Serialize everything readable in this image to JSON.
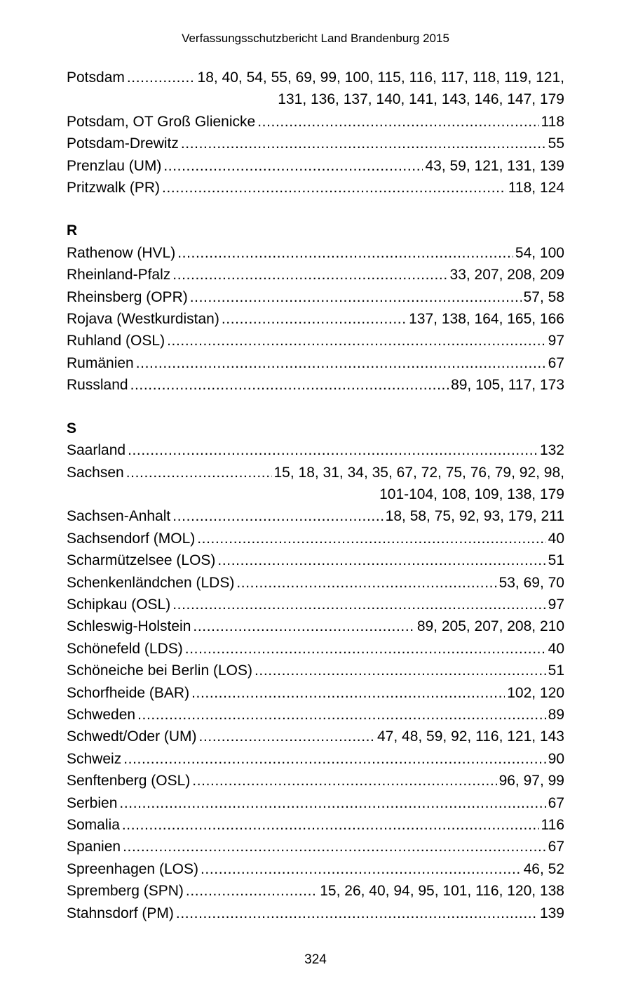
{
  "header": {
    "title": "Verfassungsschutzbericht Land Brandenburg 2015"
  },
  "footer": {
    "page_number": "324"
  },
  "index": {
    "sections": [
      {
        "heading": "",
        "entries": [
          {
            "label": "Potsdam",
            "pages": "18, 40, 54, 55, 69, 99, 100, 115, 116, 117, 118, 119, 121,",
            "pages2": "131, 136, 137, 140, 141, 143, 146, 147, 179"
          },
          {
            "label": "Potsdam, OT Groß Glienicke",
            "pages": "118"
          },
          {
            "label": "Potsdam-Drewitz",
            "pages": "55"
          },
          {
            "label": "Prenzlau (UM)",
            "pages": "43, 59, 121, 131, 139"
          },
          {
            "label": "Pritzwalk (PR)",
            "pages": "118, 124"
          }
        ]
      },
      {
        "heading": "R",
        "entries": [
          {
            "label": "Rathenow (HVL)",
            "pages": "54, 100"
          },
          {
            "label": "Rheinland-Pfalz",
            "pages": "33, 207, 208, 209"
          },
          {
            "label": "Rheinsberg (OPR)",
            "pages": "57, 58"
          },
          {
            "label": "Rojava (Westkurdistan)",
            "pages": "137, 138, 164, 165, 166"
          },
          {
            "label": "Ruhland (OSL)",
            "pages": "97"
          },
          {
            "label": "Rumänien",
            "pages": "67"
          },
          {
            "label": "Russland",
            "pages": "89, 105, 117, 173"
          }
        ]
      },
      {
        "heading": "S",
        "entries": [
          {
            "label": "Saarland",
            "pages": "132"
          },
          {
            "label": "Sachsen",
            "pages": "15, 18, 31, 34, 35, 67, 72, 75, 76, 79, 92, 98,",
            "pages2": "101-104, 108, 109, 138, 179"
          },
          {
            "label": "Sachsen-Anhalt",
            "pages": "18, 58, 75, 92, 93, 179, 211"
          },
          {
            "label": "Sachsendorf (MOL)",
            "pages": "40"
          },
          {
            "label": "Scharmützelsee (LOS)",
            "pages": "51"
          },
          {
            "label": "Schenkenländchen (LDS)",
            "pages": "53, 69, 70"
          },
          {
            "label": "Schipkau (OSL)",
            "pages": "97"
          },
          {
            "label": "Schleswig-Holstein",
            "pages": "89, 205, 207, 208, 210"
          },
          {
            "label": "Schönefeld (LDS)",
            "pages": "40"
          },
          {
            "label": "Schöneiche bei Berlin (LOS)",
            "pages": "51"
          },
          {
            "label": "Schorfheide (BAR)",
            "pages": "102, 120"
          },
          {
            "label": "Schweden",
            "pages": "89"
          },
          {
            "label": "Schwedt/Oder (UM)",
            "pages": "47, 48, 59, 92, 116, 121, 143"
          },
          {
            "label": "Schweiz",
            "pages": "90"
          },
          {
            "label": "Senftenberg (OSL)",
            "pages": "96, 97, 99"
          },
          {
            "label": "Serbien",
            "pages": "67"
          },
          {
            "label": "Somalia",
            "pages": "116"
          },
          {
            "label": "Spanien",
            "pages": "67"
          },
          {
            "label": "Spreenhagen (LOS)",
            "pages": "46, 52"
          },
          {
            "label": "Spremberg (SPN)",
            "pages": "15, 26, 40, 94, 95, 101, 116, 120, 138"
          },
          {
            "label": "Stahnsdorf (PM)",
            "pages": "139"
          }
        ]
      }
    ]
  }
}
